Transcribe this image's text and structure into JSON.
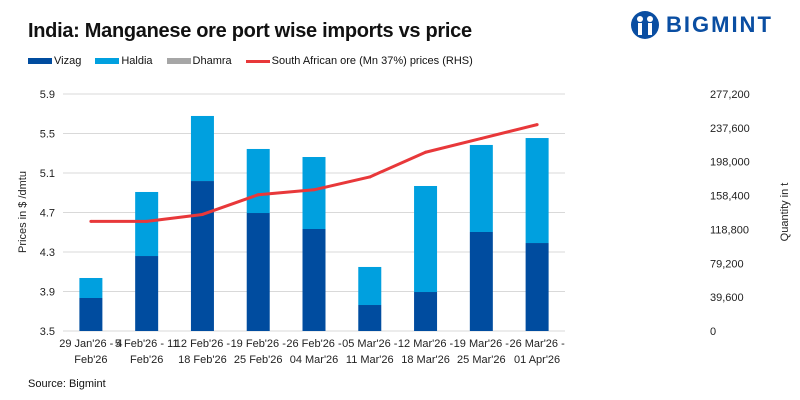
{
  "title": "India: Manganese ore port wise imports vs price",
  "logo": {
    "text": "BIGMINT"
  },
  "source": "Source: Bigmint",
  "colors": {
    "vizag": "#004c9f",
    "haldia": "#00a0df",
    "dhamra": "#a6a6a6",
    "price": "#e8383a",
    "grid": "#d9d9d9"
  },
  "chart_data": {
    "type": "bar",
    "stacked": true,
    "title": "India: Manganese ore port wise imports vs price",
    "categories": [
      [
        "29 Jan'26 - 4",
        "Feb'26"
      ],
      [
        "5 Feb'26 - 11",
        "Feb'26"
      ],
      [
        "12 Feb'26 -",
        "18 Feb'26"
      ],
      [
        "19 Feb'26 -",
        "25 Feb'26"
      ],
      [
        "26 Feb'26 -",
        "04 Mar'26"
      ],
      [
        "05 Mar'26 -",
        "11 Mar'26"
      ],
      [
        "12 Mar'26 -",
        "18 Mar'26"
      ],
      [
        "19 Mar'26 -",
        "25 Mar'26"
      ],
      [
        "26 Mar'26 -",
        "01 Apr'26"
      ]
    ],
    "series": [
      {
        "name": "Vizag",
        "type": "bar",
        "axis": "right",
        "values": [
          38600,
          87700,
          175400,
          138000,
          119300,
          30400,
          45600,
          115800,
          102900
        ]
      },
      {
        "name": "Haldia",
        "type": "bar",
        "axis": "right",
        "values": [
          23400,
          74900,
          76100,
          74900,
          84200,
          44500,
          124000,
          101800,
          122800
        ]
      },
      {
        "name": "Dhamra",
        "type": "bar",
        "axis": "right",
        "values": [
          0,
          0,
          0,
          0,
          0,
          0,
          0,
          0,
          0
        ]
      },
      {
        "name": "South African ore (Mn 37%) prices (RHS)",
        "type": "line",
        "axis": "left",
        "values": [
          4.61,
          4.61,
          4.68,
          4.88,
          4.93,
          5.06,
          5.31,
          5.45,
          5.59
        ]
      }
    ],
    "ylabel_left": "Prices in $ /dmtu",
    "ylabel_right": "Quantity in t",
    "ylim_left": [
      3.5,
      5.9
    ],
    "ylim_right": [
      0,
      277200
    ],
    "yticks_left": [
      "3.5",
      "3.9",
      "4.3",
      "4.7",
      "5.1",
      "5.5",
      "5.9"
    ],
    "yticks_right": [
      "0",
      "39,600",
      "79,200",
      "118,800",
      "158,400",
      "198,000",
      "237,600",
      "277,200"
    ],
    "grid": true,
    "legend_position": "top-left"
  }
}
